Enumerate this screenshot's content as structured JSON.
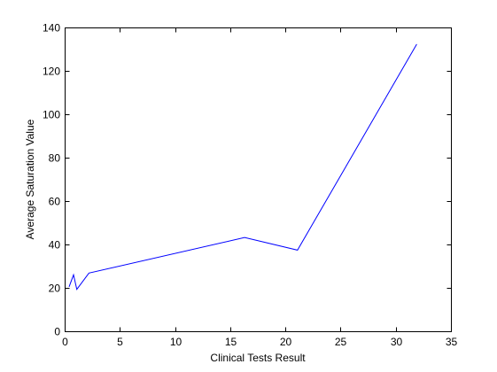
{
  "chart_data": {
    "type": "line",
    "title": "",
    "xlabel": "Clinical Tests Result",
    "ylabel": "Average Saturation Value",
    "xlim": [
      0,
      35
    ],
    "ylim": [
      0,
      140
    ],
    "xticks": [
      0,
      5,
      10,
      15,
      20,
      25,
      30,
      35
    ],
    "yticks": [
      0,
      20,
      40,
      60,
      80,
      100,
      120,
      140
    ],
    "grid": false,
    "legend": "none",
    "series": [
      {
        "color": "#0000ff",
        "x": [
          0.4,
          0.8,
          1.1,
          2.2,
          16.3,
          21.1,
          31.9
        ],
        "y": [
          20.5,
          26.0,
          19.3,
          26.8,
          43.2,
          37.4,
          132.3
        ]
      }
    ]
  }
}
